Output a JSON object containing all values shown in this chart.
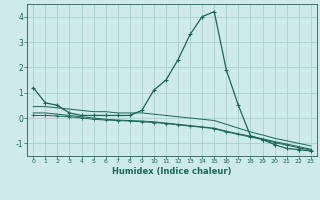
{
  "xlabel": "Humidex (Indice chaleur)",
  "ylabel": "",
  "x": [
    0,
    1,
    2,
    3,
    4,
    5,
    6,
    7,
    8,
    9,
    10,
    11,
    12,
    13,
    14,
    15,
    16,
    17,
    18,
    19,
    20,
    21,
    22,
    23
  ],
  "line1": [
    1.2,
    0.6,
    0.5,
    0.2,
    0.1,
    0.1,
    0.1,
    0.1,
    0.1,
    0.3,
    1.1,
    1.5,
    2.3,
    3.3,
    4.0,
    4.2,
    1.9,
    0.5,
    -0.7,
    -0.85,
    -1.05,
    -1.2,
    -1.25,
    -1.3
  ],
  "line2": [
    0.45,
    0.45,
    0.4,
    0.35,
    0.3,
    0.25,
    0.25,
    0.2,
    0.2,
    0.2,
    0.15,
    0.1,
    0.05,
    0.0,
    -0.05,
    -0.1,
    -0.25,
    -0.4,
    -0.55,
    -0.67,
    -0.8,
    -0.9,
    -1.0,
    -1.1
  ],
  "line3": [
    0.2,
    0.2,
    0.15,
    0.1,
    0.05,
    0.0,
    -0.05,
    -0.08,
    -0.1,
    -0.12,
    -0.15,
    -0.2,
    -0.25,
    -0.3,
    -0.35,
    -0.4,
    -0.52,
    -0.62,
    -0.72,
    -0.82,
    -0.93,
    -1.03,
    -1.13,
    -1.23
  ],
  "line4": [
    0.1,
    0.1,
    0.08,
    0.05,
    0.0,
    -0.05,
    -0.08,
    -0.1,
    -0.12,
    -0.15,
    -0.18,
    -0.22,
    -0.27,
    -0.32,
    -0.37,
    -0.42,
    -0.55,
    -0.65,
    -0.75,
    -0.85,
    -0.97,
    -1.07,
    -1.17,
    -1.27
  ],
  "bg_color": "#ceeaea",
  "grid_color": "#aacece",
  "line_color": "#1a6655",
  "ylim": [
    -1.5,
    4.5
  ],
  "xlim": [
    -0.5,
    23.5
  ],
  "yticks": [
    -1,
    0,
    1,
    2,
    3,
    4
  ],
  "xticks": [
    0,
    1,
    2,
    3,
    4,
    5,
    6,
    7,
    8,
    9,
    10,
    11,
    12,
    13,
    14,
    15,
    16,
    17,
    18,
    19,
    20,
    21,
    22,
    23
  ]
}
